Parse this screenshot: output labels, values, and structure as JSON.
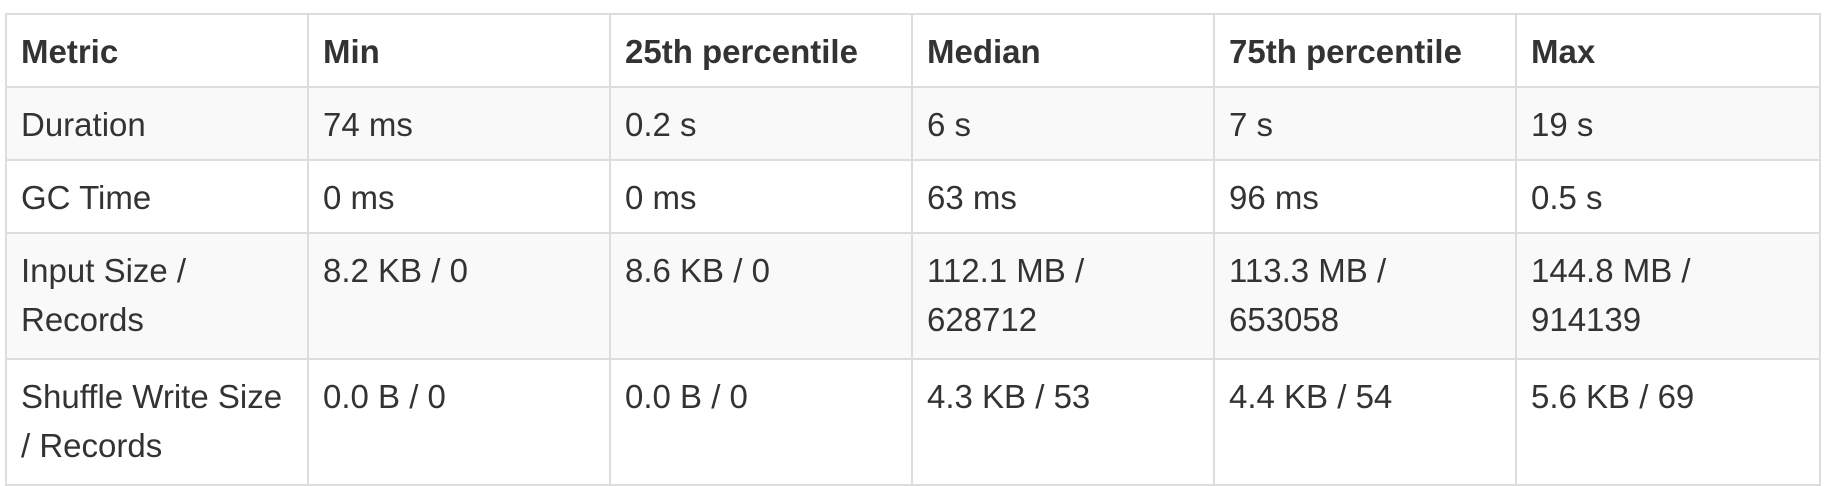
{
  "table": {
    "headers": [
      "Metric",
      "Min",
      "25th percentile",
      "Median",
      "75th percentile",
      "Max"
    ],
    "rows": [
      {
        "metric": "Duration",
        "values": [
          "74 ms",
          "0.2 s",
          "6 s",
          "7 s",
          "19 s"
        ]
      },
      {
        "metric": "GC Time",
        "values": [
          "0 ms",
          "0 ms",
          "63 ms",
          "96 ms",
          "0.5 s"
        ]
      },
      {
        "metric": "Input Size / Records",
        "values": [
          "8.2 KB / 0",
          "8.6 KB / 0",
          "112.1 MB / 628712",
          "113.3 MB / 653058",
          "144.8 MB / 914139"
        ]
      },
      {
        "metric": "Shuffle Write Size / Records",
        "values": [
          "0.0 B / 0",
          "0.0 B / 0",
          "4.3 KB / 53",
          "4.4 KB / 54",
          "5.6 KB / 69"
        ]
      }
    ]
  }
}
